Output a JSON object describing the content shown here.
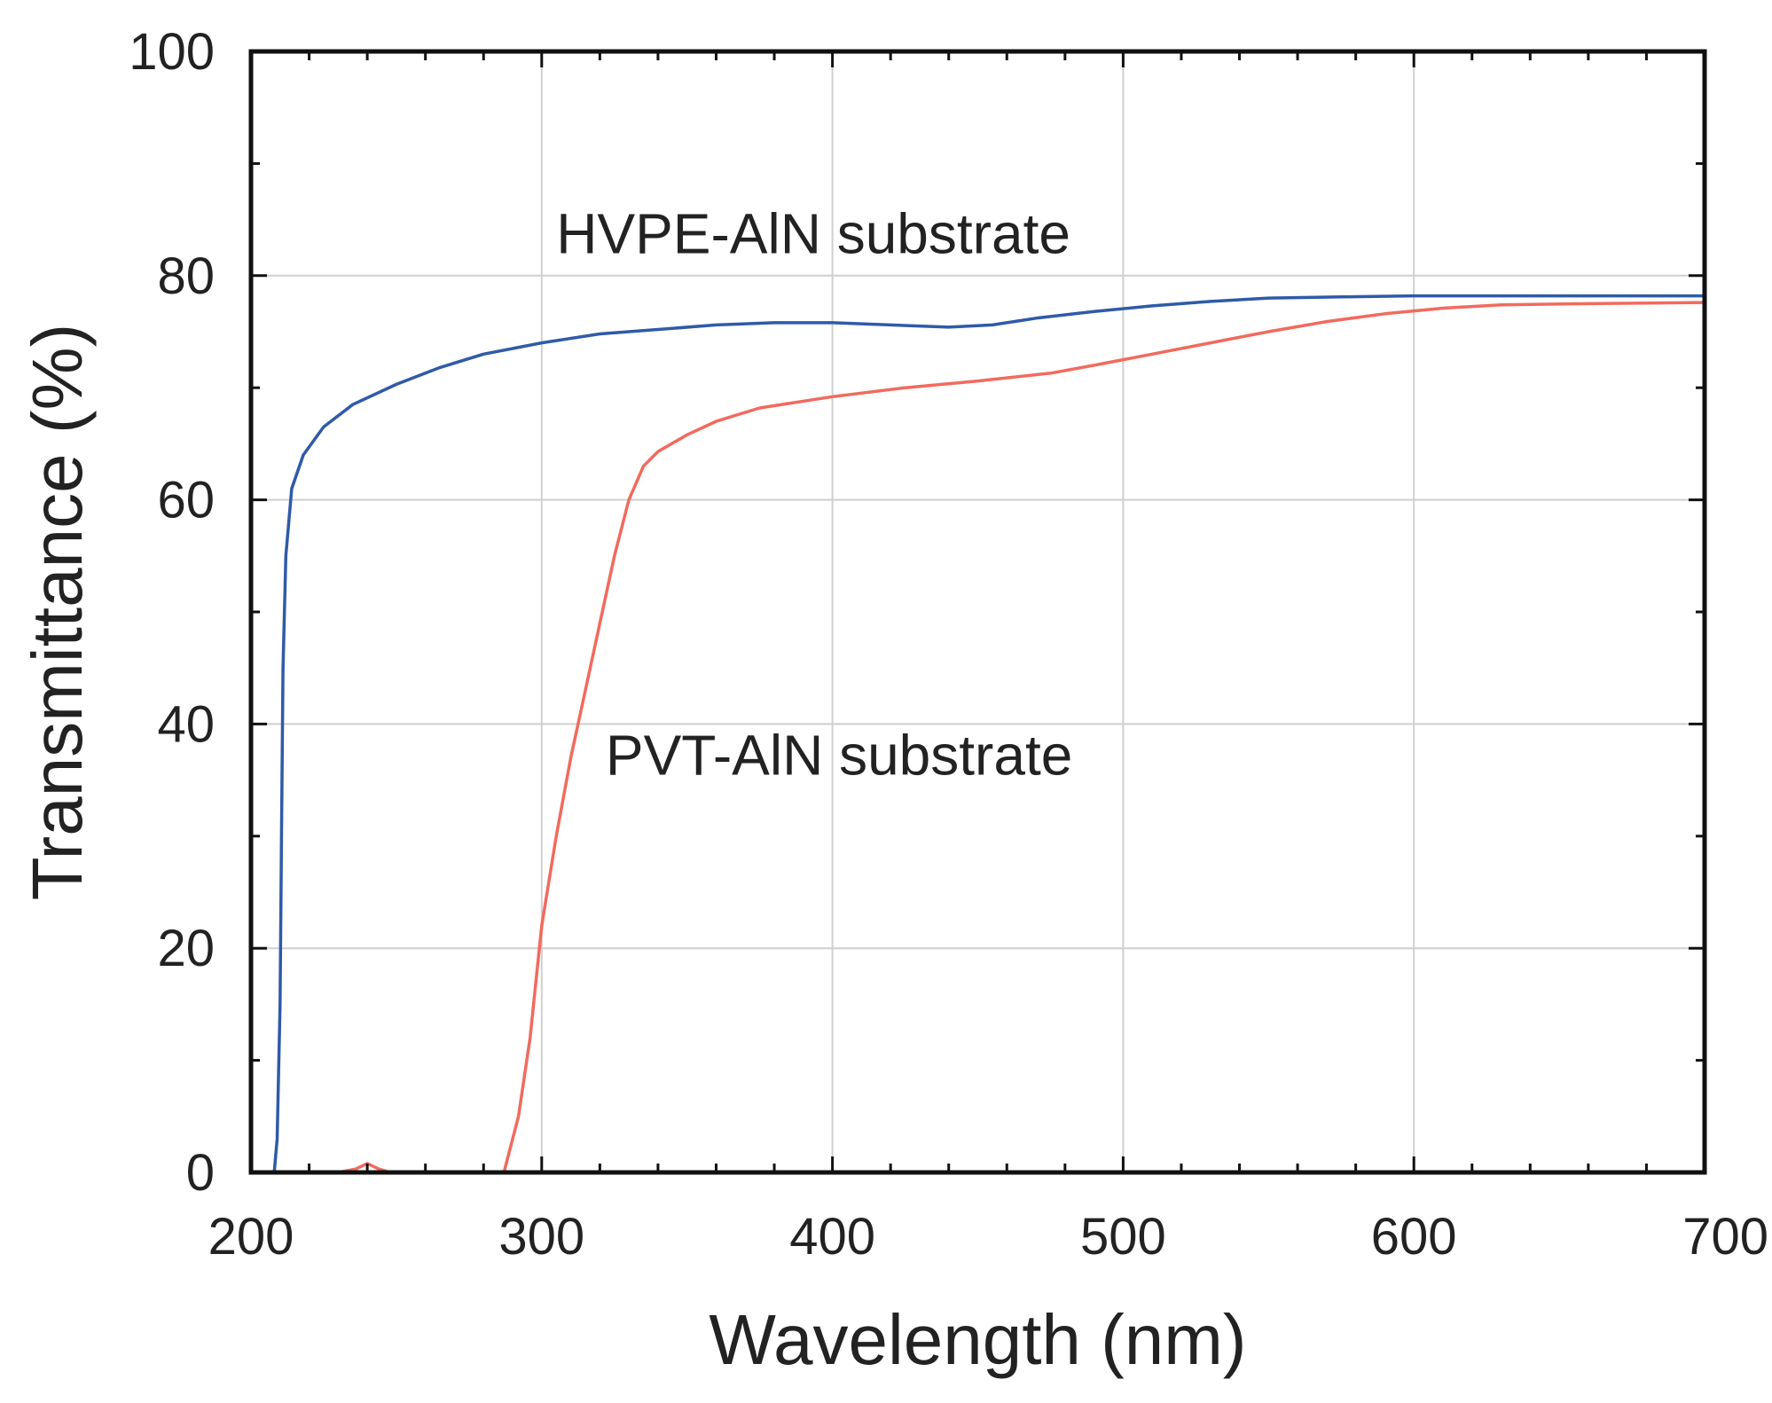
{
  "chart_data": {
    "type": "line",
    "title": "",
    "xlabel": "Wavelength (nm)",
    "ylabel": "Transmittance (%)",
    "xlim": [
      200,
      700
    ],
    "ylim": [
      0,
      100
    ],
    "xticks": [
      200,
      300,
      400,
      500,
      600,
      700
    ],
    "yticks": [
      0,
      20,
      40,
      60,
      80,
      100
    ],
    "x_tick_labels": [
      "200",
      "300",
      "400",
      "500",
      "600",
      "700"
    ],
    "y_tick_labels": [
      "0",
      "20",
      "40",
      "60",
      "80",
      "100"
    ],
    "x_minor_step": 20,
    "y_minor_step": 10,
    "grid": true,
    "series": [
      {
        "name": "HVPE-AlN substrate",
        "color": "#2f5aa8",
        "points": [
          [
            200,
            0
          ],
          [
            204,
            0
          ],
          [
            208,
            0
          ],
          [
            209,
            3
          ],
          [
            210,
            15
          ],
          [
            210.5,
            30
          ],
          [
            211,
            45
          ],
          [
            212,
            55
          ],
          [
            214,
            61
          ],
          [
            218,
            64
          ],
          [
            225,
            66.5
          ],
          [
            235,
            68.5
          ],
          [
            250,
            70.3
          ],
          [
            265,
            71.8
          ],
          [
            280,
            73
          ],
          [
            300,
            74
          ],
          [
            320,
            74.8
          ],
          [
            340,
            75.2
          ],
          [
            360,
            75.6
          ],
          [
            380,
            75.8
          ],
          [
            400,
            75.8
          ],
          [
            420,
            75.6
          ],
          [
            440,
            75.4
          ],
          [
            455,
            75.6
          ],
          [
            470,
            76.2
          ],
          [
            490,
            76.8
          ],
          [
            510,
            77.3
          ],
          [
            530,
            77.7
          ],
          [
            550,
            78
          ],
          [
            575,
            78.1
          ],
          [
            600,
            78.2
          ],
          [
            625,
            78.2
          ],
          [
            650,
            78.2
          ],
          [
            675,
            78.2
          ],
          [
            700,
            78.2
          ]
        ]
      },
      {
        "name": "PVT-AlN substrate",
        "color": "#f26a5e",
        "points": [
          [
            200,
            0
          ],
          [
            230,
            0
          ],
          [
            236,
            0.3
          ],
          [
            240,
            0.8
          ],
          [
            244,
            0.3
          ],
          [
            248,
            0
          ],
          [
            270,
            0
          ],
          [
            287,
            0
          ],
          [
            292,
            5
          ],
          [
            296,
            12
          ],
          [
            300,
            22
          ],
          [
            305,
            30
          ],
          [
            310,
            37
          ],
          [
            315,
            43
          ],
          [
            320,
            49
          ],
          [
            325,
            55
          ],
          [
            330,
            60
          ],
          [
            335,
            63
          ],
          [
            340,
            64.3
          ],
          [
            350,
            65.8
          ],
          [
            360,
            67
          ],
          [
            375,
            68.2
          ],
          [
            400,
            69.2
          ],
          [
            425,
            70
          ],
          [
            450,
            70.6
          ],
          [
            475,
            71.3
          ],
          [
            490,
            72
          ],
          [
            510,
            73
          ],
          [
            530,
            74
          ],
          [
            550,
            75
          ],
          [
            570,
            75.9
          ],
          [
            590,
            76.6
          ],
          [
            610,
            77.1
          ],
          [
            630,
            77.4
          ],
          [
            660,
            77.5
          ],
          [
            700,
            77.6
          ]
        ]
      }
    ],
    "annotations": [
      {
        "text": "HVPE-AlN substrate",
        "x": 305,
        "y": 82
      },
      {
        "text": "PVT-AlN substrate",
        "x": 322,
        "y": 35.5
      }
    ]
  }
}
